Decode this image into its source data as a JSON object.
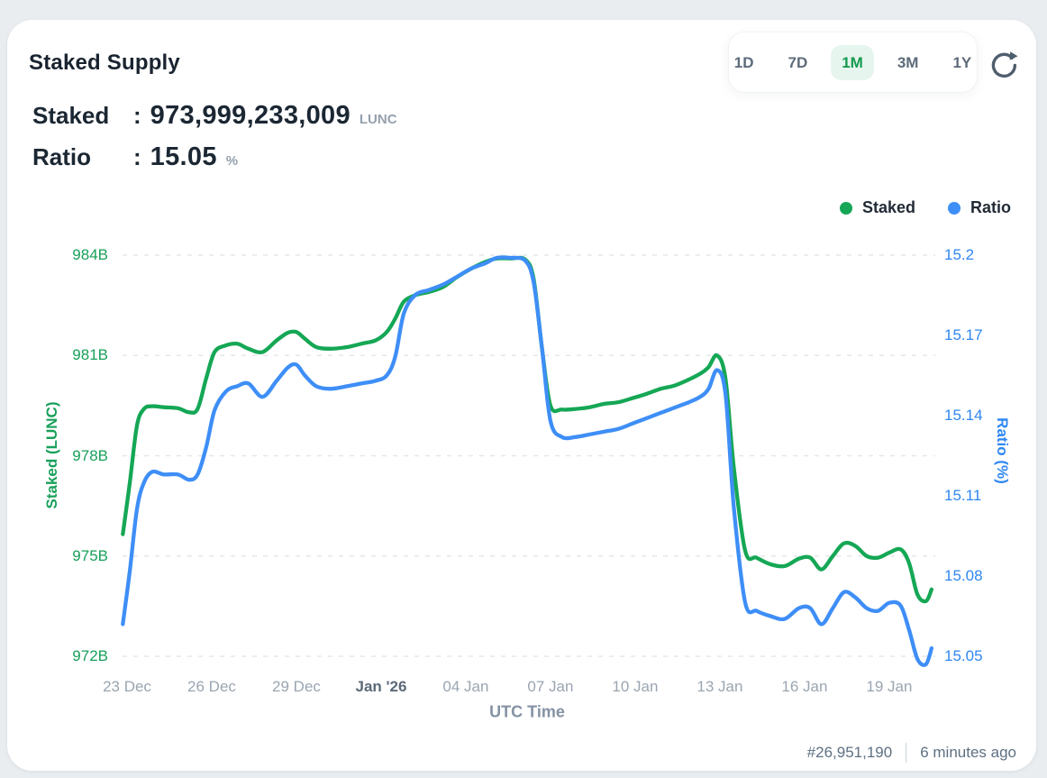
{
  "page": {
    "background": "#e9edf0",
    "card_background": "#ffffff"
  },
  "header": {
    "title": "Staked Supply",
    "ranges": [
      {
        "label": "1D",
        "active": false
      },
      {
        "label": "7D",
        "active": false
      },
      {
        "label": "1M",
        "active": true
      },
      {
        "label": "3M",
        "active": false
      },
      {
        "label": "1Y",
        "active": false
      }
    ],
    "active_color": "#149a4e",
    "active_bg": "#e6f5ed",
    "refresh_icon": "refresh-icon"
  },
  "stats": [
    {
      "label": "Staked",
      "sep": ":",
      "value": "973,999,233,009",
      "unit": "LUNC"
    },
    {
      "label": "Ratio",
      "sep": ":",
      "value": "15.05",
      "unit": "%"
    }
  ],
  "legend": [
    {
      "label": "Staked",
      "color": "#15a755",
      "dot_icon": "staked-dot-icon"
    },
    {
      "label": "Ratio",
      "color": "#3e8ef7",
      "dot_icon": "ratio-dot-icon"
    }
  ],
  "footer": {
    "block_number": "#26,951,190",
    "updated": "6 minutes ago"
  },
  "chart_data": {
    "type": "line",
    "title": "Staked Supply",
    "xlabel": "UTC Time",
    "grid": "dashed-horizontal",
    "legend_position": "top-right",
    "x_unit": "days since 23 Dec '25, UTC",
    "x_range": [
      -0.4,
      28.75
    ],
    "x_ticks": [
      {
        "label": "23 Dec",
        "day": 0,
        "emphasis": false
      },
      {
        "label": "26 Dec",
        "day": 3,
        "emphasis": false
      },
      {
        "label": "29 Dec",
        "day": 6,
        "emphasis": false
      },
      {
        "label": "Jan '26",
        "day": 9,
        "emphasis": true
      },
      {
        "label": "04 Jan",
        "day": 12,
        "emphasis": false
      },
      {
        "label": "07 Jan",
        "day": 15,
        "emphasis": false
      },
      {
        "label": "10 Jan",
        "day": 18,
        "emphasis": false
      },
      {
        "label": "13 Jan",
        "day": 21,
        "emphasis": false
      },
      {
        "label": "16 Jan",
        "day": 24,
        "emphasis": false
      },
      {
        "label": "19 Jan",
        "day": 27,
        "emphasis": false
      }
    ],
    "left_axis": {
      "label": "Staked (LUNC)",
      "color": "#18a05a",
      "range": [
        972,
        984
      ],
      "ticks": [
        {
          "label": "984B",
          "value": 984
        },
        {
          "label": "981B",
          "value": 981
        },
        {
          "label": "978B",
          "value": 978
        },
        {
          "label": "975B",
          "value": 975
        },
        {
          "label": "972B",
          "value": 972
        }
      ]
    },
    "right_axis": {
      "label": "Ratio (%)",
      "color": "#2f87f0",
      "range": [
        15.05,
        15.2
      ],
      "ticks": [
        {
          "label": "15.2",
          "value": 15.2
        },
        {
          "label": "15.17",
          "value": 15.17
        },
        {
          "label": "15.14",
          "value": 15.14
        },
        {
          "label": "15.11",
          "value": 15.11
        },
        {
          "label": "15.08",
          "value": 15.08
        },
        {
          "label": "15.05",
          "value": 15.05
        }
      ]
    },
    "x_days": [
      -0.15,
      0.1,
      0.35,
      0.6,
      0.9,
      1.3,
      1.8,
      2.2,
      2.5,
      2.8,
      3.1,
      3.5,
      3.9,
      4.3,
      4.8,
      5.3,
      5.7,
      6.0,
      6.3,
      6.7,
      7.2,
      7.8,
      8.3,
      8.8,
      9.2,
      9.5,
      9.8,
      10.2,
      10.7,
      11.2,
      11.7,
      12.2,
      12.7,
      13.1,
      13.6,
      14.1,
      14.4,
      14.7,
      15.0,
      15.4,
      15.9,
      16.4,
      16.9,
      17.4,
      17.9,
      18.4,
      18.9,
      19.4,
      19.9,
      20.3,
      20.6,
      20.9,
      21.2,
      21.5,
      21.9,
      22.3,
      22.8,
      23.3,
      23.8,
      24.2,
      24.6,
      25.0,
      25.4,
      25.8,
      26.2,
      26.6,
      27.0,
      27.4,
      27.7,
      28.0,
      28.3,
      28.5
    ],
    "series": [
      {
        "name": "Staked",
        "axis": "left",
        "unit": "B LUNC",
        "color": "#15a755",
        "values": [
          975.65,
          977.2,
          978.9,
          979.4,
          979.48,
          979.45,
          979.42,
          979.3,
          979.4,
          980.3,
          981.1,
          981.3,
          981.35,
          981.2,
          981.1,
          981.45,
          981.68,
          981.7,
          981.5,
          981.25,
          981.2,
          981.25,
          981.35,
          981.45,
          981.7,
          982.1,
          982.6,
          982.8,
          982.9,
          983.05,
          983.35,
          983.6,
          983.8,
          983.9,
          983.9,
          983.87,
          983.3,
          981.2,
          979.5,
          979.38,
          979.4,
          979.45,
          979.55,
          979.6,
          979.72,
          979.85,
          980.0,
          980.1,
          980.28,
          980.45,
          980.65,
          981.0,
          980.3,
          977.6,
          975.15,
          974.95,
          974.75,
          974.7,
          974.92,
          974.95,
          974.6,
          975.0,
          975.38,
          975.3,
          975.0,
          974.95,
          975.1,
          975.2,
          974.8,
          973.85,
          973.65,
          974.0
        ]
      },
      {
        "name": "Ratio",
        "axis": "right",
        "unit": "%",
        "color": "#3e8ef7",
        "values": [
          15.062,
          15.082,
          15.105,
          15.115,
          15.119,
          15.118,
          15.118,
          15.116,
          15.118,
          15.128,
          15.142,
          15.149,
          15.151,
          15.152,
          15.147,
          15.153,
          15.158,
          15.159,
          15.155,
          15.151,
          15.15,
          15.151,
          15.152,
          15.153,
          15.155,
          15.162,
          15.178,
          15.185,
          15.187,
          15.189,
          15.192,
          15.195,
          15.197,
          15.199,
          15.199,
          15.198,
          15.19,
          15.165,
          15.138,
          15.132,
          15.132,
          15.133,
          15.134,
          15.135,
          15.137,
          15.139,
          15.141,
          15.143,
          15.145,
          15.147,
          15.15,
          15.157,
          15.148,
          15.105,
          15.07,
          15.067,
          15.065,
          15.064,
          15.068,
          15.068,
          15.062,
          15.068,
          15.074,
          15.072,
          15.068,
          15.067,
          15.07,
          15.069,
          15.06,
          15.049,
          15.047,
          15.053
        ]
      }
    ]
  }
}
